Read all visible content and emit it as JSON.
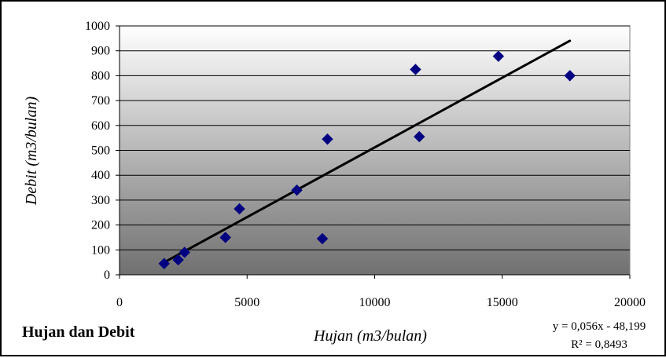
{
  "chart_data": {
    "type": "scatter",
    "title": "Hujan dan Debit",
    "xlabel": "Hujan (m3/bulan)",
    "ylabel": "Debit (m3/bulan)",
    "xlim": [
      0,
      20000
    ],
    "ylim": [
      0,
      1000
    ],
    "x_ticks": [
      0,
      5000,
      10000,
      15000,
      20000
    ],
    "x_tick_labels": [
      "0",
      "5000",
      "10000",
      "15000",
      "20000"
    ],
    "y_ticks": [
      0,
      100,
      200,
      300,
      400,
      500,
      600,
      700,
      800,
      900,
      1000
    ],
    "y_tick_labels": [
      "0",
      "100",
      "200",
      "300",
      "400",
      "500",
      "600",
      "700",
      "800",
      "900",
      "1000"
    ],
    "grid": true,
    "series": [
      {
        "points": [
          {
            "x": 1750,
            "y": 45
          },
          {
            "x": 2300,
            "y": 60
          },
          {
            "x": 2550,
            "y": 90
          },
          {
            "x": 4150,
            "y": 150
          },
          {
            "x": 4700,
            "y": 265
          },
          {
            "x": 6950,
            "y": 340
          },
          {
            "x": 7950,
            "y": 145
          },
          {
            "x": 8150,
            "y": 545
          },
          {
            "x": 11600,
            "y": 825
          },
          {
            "x": 11750,
            "y": 555
          },
          {
            "x": 14850,
            "y": 878
          },
          {
            "x": 17650,
            "y": 800
          }
        ],
        "marker": "diamond",
        "color": "#000080"
      }
    ],
    "trendline": {
      "type": "linear",
      "slope": 0.056,
      "intercept": -48.199,
      "x_range": [
        1750,
        17650
      ],
      "color": "#000000",
      "equation_text": "y = 0,056x - 48,199",
      "r2_text": "R² = 0,8493"
    },
    "plot_background": {
      "top_color": "#ffffff",
      "bottom_color": "#707070"
    }
  }
}
